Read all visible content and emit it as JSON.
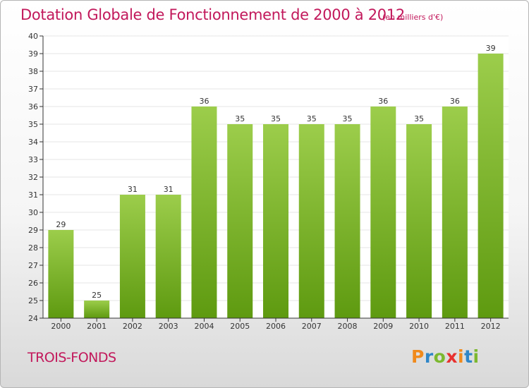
{
  "header": {
    "title": "Dotation Globale de Fonctionnement de 2000 à 2012",
    "subtitle": "(en milliers d'€)"
  },
  "footer": {
    "place": "TROIS-FONDS",
    "logo": "Proxiti"
  },
  "colors": {
    "title": "#c2185b",
    "bar_top": "#9ccd4b",
    "bar_bottom": "#5e9a10",
    "axis": "#333333",
    "grid": "#e6e6e6",
    "logo_letters": [
      "#f08a1c",
      "#2e86c8",
      "#7cb82f",
      "#e8312f",
      "#f08a1c",
      "#2e86c8",
      "#7cb82f"
    ]
  },
  "chart_data": {
    "type": "bar",
    "title": "Dotation Globale de Fonctionnement de 2000 à 2012",
    "subtitle": "(en milliers d'€)",
    "xlabel": "",
    "ylabel": "",
    "categories": [
      "2000",
      "2001",
      "2002",
      "2003",
      "2004",
      "2005",
      "2006",
      "2007",
      "2008",
      "2009",
      "2010",
      "2011",
      "2012"
    ],
    "values": [
      29,
      25,
      31,
      31,
      36,
      35,
      35,
      35,
      35,
      36,
      35,
      36,
      39
    ],
    "ylim": [
      24,
      40
    ],
    "yticks": [
      24,
      25,
      26,
      27,
      28,
      29,
      30,
      31,
      32,
      33,
      34,
      35,
      36,
      37,
      38,
      39,
      40
    ],
    "grid": true,
    "legend": "none",
    "data_labels": true
  }
}
